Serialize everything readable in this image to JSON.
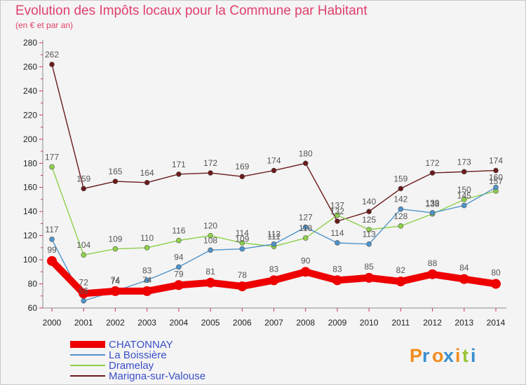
{
  "title": "Evolution des Impôts locaux pour la Commune par Habitant",
  "subtitle": "(en € et par an)",
  "logo": {
    "letters": [
      "P",
      "r",
      "o",
      "x",
      "i",
      "t",
      "i"
    ],
    "colors": [
      "#f28c1e",
      "#3a8fd0",
      "#f28c1e",
      "#3a8fd0",
      "#f28c1e",
      "#9ac43a",
      "#3a8fd0"
    ]
  },
  "chart_data": {
    "type": "line",
    "title": "Evolution des Impôts locaux pour la Commune par Habitant",
    "subtitle": "(en € et par an)",
    "xlabel": "",
    "ylabel": "",
    "ylim": [
      60,
      280
    ],
    "yticks": [
      "60",
      "80",
      "100",
      "120",
      "140",
      "160",
      "180",
      "200",
      "220",
      "240",
      "260",
      "280"
    ],
    "x": [
      "2000",
      "2001",
      "2002",
      "2003",
      "2004",
      "2005",
      "2006",
      "2007",
      "2008",
      "2009",
      "2010",
      "2011",
      "2012",
      "2013",
      "2014"
    ],
    "series": [
      {
        "name": "Marigna-sur-Valouse",
        "color": "#6b1a1a",
        "values": [
          262,
          159,
          165,
          164,
          171,
          172,
          169,
          174,
          180,
          132,
          140,
          159,
          172,
          173,
          174
        ],
        "labels": [
          "262",
          "159",
          "165",
          "164",
          "171",
          "172",
          "169",
          "174",
          "180",
          "132",
          "140",
          "159",
          "172",
          "173",
          "174"
        ]
      },
      {
        "name": "Dramelay",
        "color": "#8ed04a",
        "values": [
          177,
          104,
          109,
          110,
          116,
          120,
          114,
          111,
          118,
          137,
          125,
          128,
          138,
          150,
          157
        ],
        "labels": [
          "177",
          "104",
          "109",
          "110",
          "116",
          "120",
          "114",
          "111",
          "118",
          "137",
          "125",
          "128",
          "138",
          "150",
          "157"
        ]
      },
      {
        "name": "La Boissière",
        "color": "#4f93c9",
        "values": [
          117,
          66,
          74,
          83,
          94,
          108,
          109,
          113,
          127,
          114,
          113,
          142,
          139,
          145,
          160
        ],
        "labels": [
          "117",
          "66",
          "74",
          "83",
          "94",
          "108",
          "109",
          "113",
          "127",
          "114",
          "113",
          "142",
          "139",
          "145",
          "160"
        ]
      },
      {
        "name": "CHATONNAY",
        "color": "#ee0000",
        "values": [
          99,
          72,
          74,
          74,
          79,
          81,
          78,
          83,
          90,
          83,
          85,
          82,
          88,
          84,
          80
        ],
        "labels": [
          "99",
          "72",
          "74",
          "74",
          "79",
          "81",
          "78",
          "83",
          "90",
          "83",
          "85",
          "82",
          "88",
          "84",
          "80"
        ]
      }
    ],
    "legend_order": [
      "CHATONNAY",
      "La Boissière",
      "Dramelay",
      "Marigna-sur-Valouse"
    ],
    "legend_position": "bottom-left",
    "grid": false
  }
}
